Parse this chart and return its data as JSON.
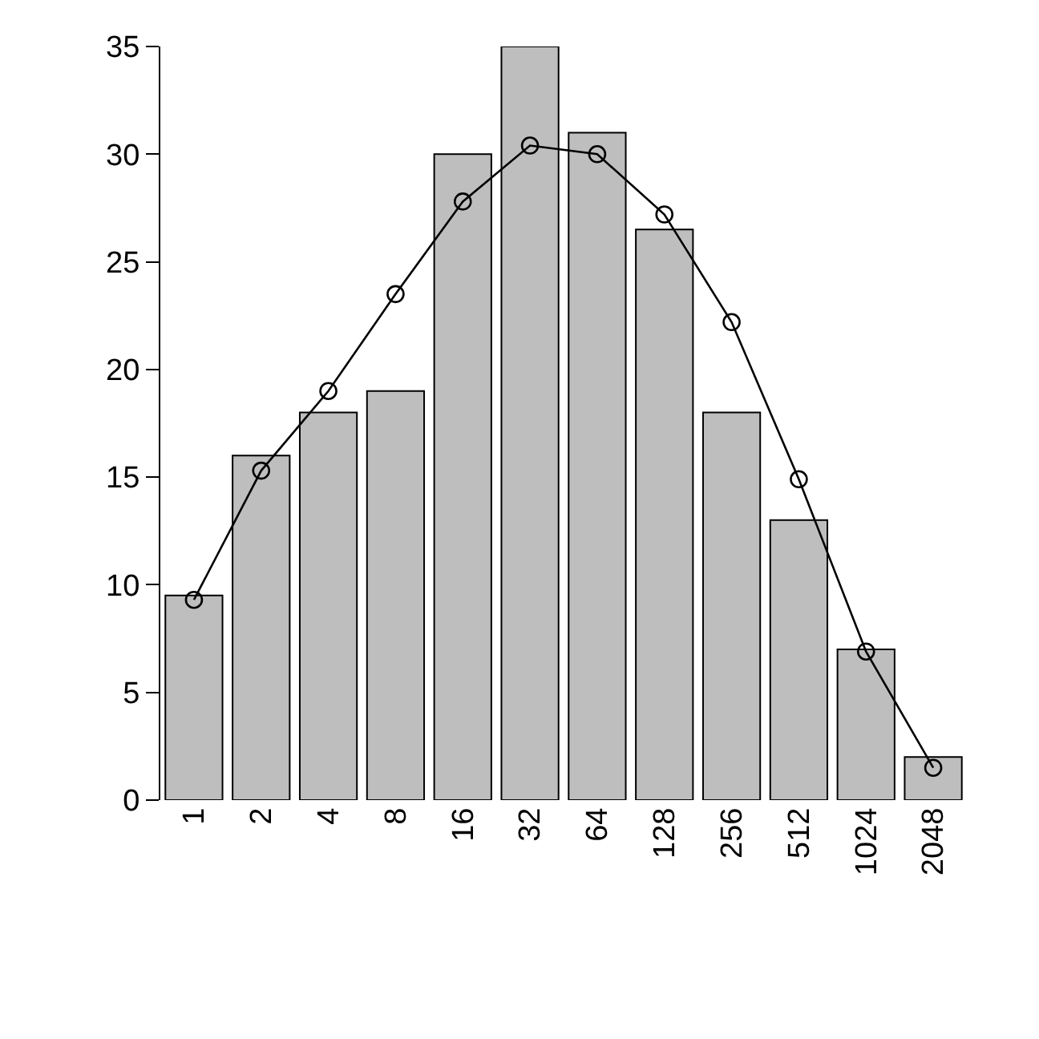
{
  "chart_data": {
    "type": "bar",
    "categories": [
      "1",
      "2",
      "4",
      "8",
      "16",
      "32",
      "64",
      "128",
      "256",
      "512",
      "1024",
      "2048"
    ],
    "series": [
      {
        "color": "#bebebe",
        "values": [
          9.5,
          16,
          18,
          19,
          30,
          35,
          31,
          26.5,
          18,
          13,
          7,
          2
        ]
      },
      {
        "type": "line",
        "color": "#000000",
        "values": [
          9.3,
          15.3,
          19.0,
          23.5,
          27.8,
          30.4,
          30.0,
          27.2,
          22.2,
          14.9,
          6.9,
          1.5
        ]
      }
    ],
    "ylim": [
      0,
      35
    ],
    "yticks": [
      0,
      5,
      10,
      15,
      20,
      25,
      30,
      35
    ],
    "marker": "circle",
    "line_style": "solid"
  }
}
